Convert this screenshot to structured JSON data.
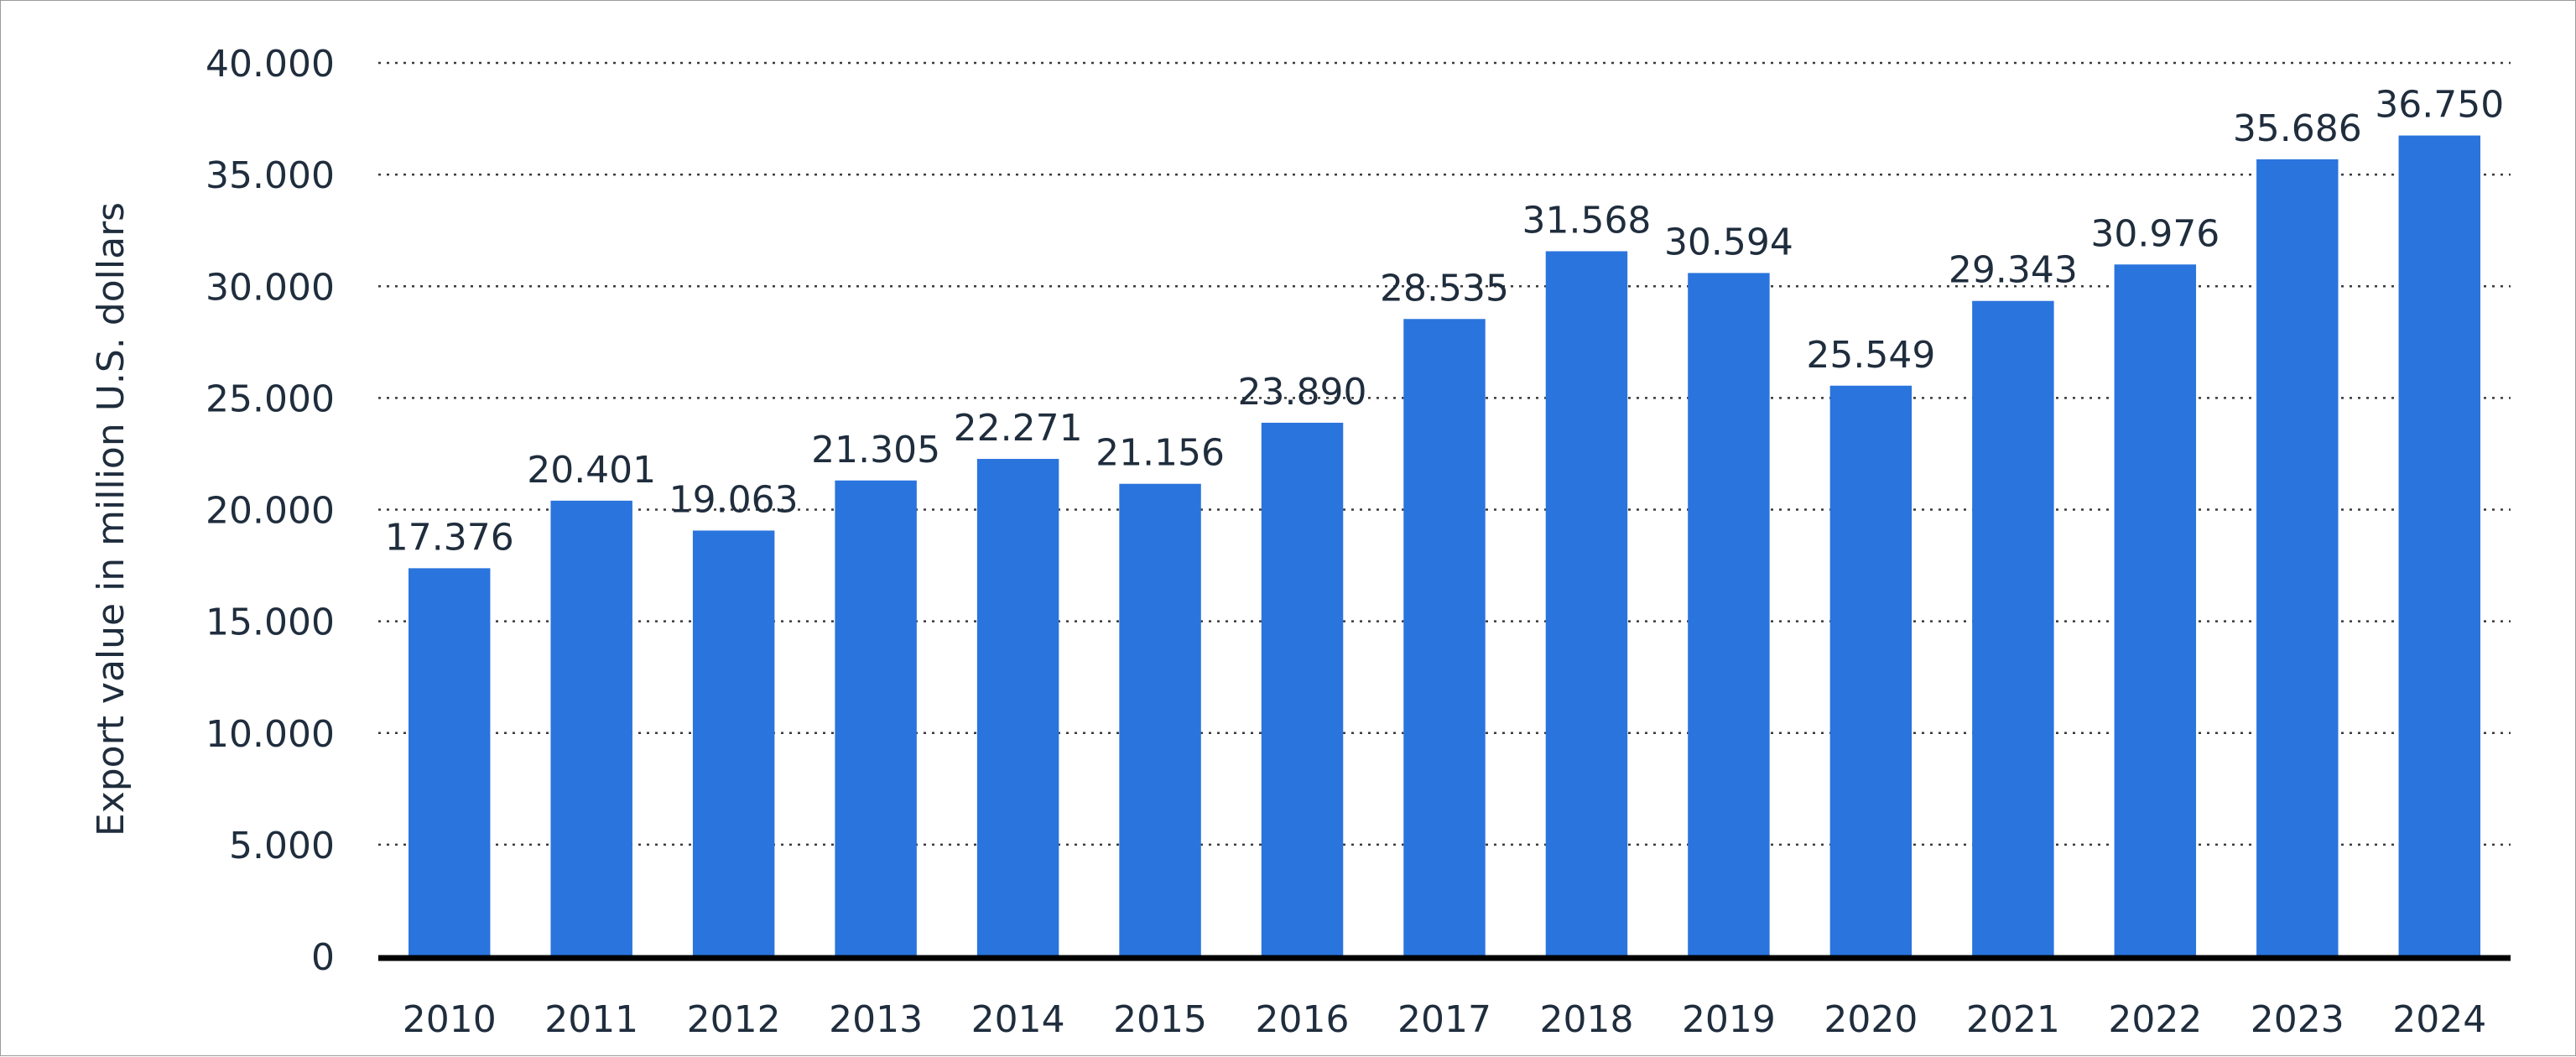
{
  "chart_data": {
    "type": "bar",
    "categories": [
      "2010",
      "2011",
      "2012",
      "2013",
      "2014",
      "2015",
      "2016",
      "2017",
      "2018",
      "2019",
      "2020",
      "2021",
      "2022",
      "2023",
      "2024"
    ],
    "values": [
      17376,
      20401,
      19063,
      21305,
      22271,
      21156,
      23890,
      28535,
      31568,
      30594,
      25549,
      29343,
      30976,
      35686,
      36750
    ],
    "data_labels": [
      "17.376",
      "20.401",
      "19.063",
      "21.305",
      "22.271",
      "21.156",
      "23.890",
      "28.535",
      "31.568",
      "30.594",
      "25.549",
      "29.343",
      "30.976",
      "35.686",
      "36.750"
    ],
    "title": "",
    "xlabel": "",
    "ylabel": "Export value in million U.S. dollars",
    "ylim": [
      0,
      40000
    ],
    "yticks": [
      0,
      5000,
      10000,
      15000,
      20000,
      25000,
      30000,
      35000,
      40000
    ],
    "ytick_labels": [
      "0",
      "5.000",
      "10.000",
      "15.000",
      "20.000",
      "25.000",
      "30.000",
      "35.000",
      "40.000"
    ],
    "grid": "horizontal dotted",
    "legend": "none",
    "bar_color": "#2a74dd",
    "gridline_color": "#3a3a3a",
    "baseline_color": "#000000",
    "text_color": "#1f2d3d"
  }
}
